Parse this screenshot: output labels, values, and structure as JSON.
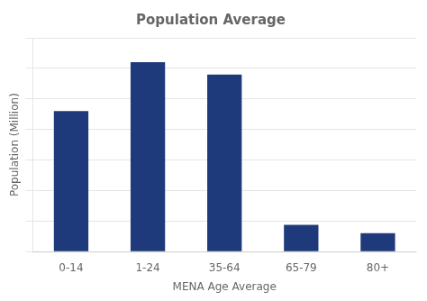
{
  "chart_data": {
    "type": "bar",
    "title": "Population Average",
    "x_label": "MENA Age Average",
    "y_label": "Population (Million)",
    "categories": [
      "0-14",
      "1-24",
      "35-64",
      "65-79",
      "80+"
    ],
    "values": [
      115,
      155,
      145,
      22,
      15
    ],
    "color": "#1F3A7A",
    "ylim": [
      0,
      175
    ],
    "yticks": [
      0,
      25,
      50,
      75,
      100,
      125,
      150,
      175
    ],
    "grid": true,
    "tick_labels": "x"
  }
}
